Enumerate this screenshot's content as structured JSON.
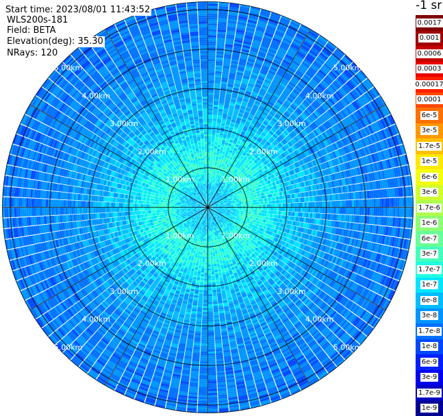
{
  "header": {
    "start_time": "Start time: 2023/08/01 11:43:52",
    "instrument": "WLS200s-181",
    "field": "Field: BETA",
    "elevation": "Elevation(deg): 35.30",
    "nrays": "NRays: 120"
  },
  "colorbar": {
    "unit_label": "-1 sr",
    "levels": [
      {
        "label": "0.0017",
        "color": "#800000"
      },
      {
        "label": "0.001",
        "color": "#a00000"
      },
      {
        "label": "0.0006",
        "color": "#c40000"
      },
      {
        "label": "0.0003",
        "color": "#e80000"
      },
      {
        "label": "0.00017",
        "color": "#ff2000"
      },
      {
        "label": "0.0001",
        "color": "#ff4800"
      },
      {
        "label": "6e-5",
        "color": "#ff7000"
      },
      {
        "label": "3e-5",
        "color": "#ff9800"
      },
      {
        "label": "1.7e-5",
        "color": "#ffc000"
      },
      {
        "label": "1e-5",
        "color": "#ffe800"
      },
      {
        "label": "6e-6",
        "color": "#f4ff0c"
      },
      {
        "label": "3e-6",
        "color": "#d0ff30"
      },
      {
        "label": "1.7e-6",
        "color": "#b0ff50"
      },
      {
        "label": "1e-6",
        "color": "#8cff74"
      },
      {
        "label": "6e-7",
        "color": "#68ff98"
      },
      {
        "label": "3e-7",
        "color": "#44ffbc"
      },
      {
        "label": "1.7e-7",
        "color": "#20ffe0"
      },
      {
        "label": "1e-7",
        "color": "#00e4ff"
      },
      {
        "label": "6e-8",
        "color": "#00bcff"
      },
      {
        "label": "3e-8",
        "color": "#0094ff"
      },
      {
        "label": "1.7e-8",
        "color": "#0070ff"
      },
      {
        "label": "1e-8",
        "color": "#0048ff"
      },
      {
        "label": "6e-9",
        "color": "#0020ff"
      },
      {
        "label": "3e-9",
        "color": "#0000f0"
      },
      {
        "label": "1.7e-9",
        "color": "#0000c0"
      },
      {
        "label": "1e-9",
        "color": "#000090"
      }
    ]
  },
  "chart_data": {
    "type": "heatmap",
    "subtype": "ppi-polar",
    "field": "BETA",
    "elevation_deg": 35.3,
    "n_rays": 120,
    "range_rings_km": [
      1,
      2,
      3,
      4,
      5
    ],
    "range_ring_labels": [
      "1.00km",
      "2.00km",
      "3.00km",
      "4.00km",
      "5.00km"
    ],
    "max_range_km": 5.2,
    "azimuth_spokes_deg": [
      0,
      30,
      60,
      90,
      120,
      150,
      180,
      210,
      240,
      270,
      300,
      330
    ],
    "color_scale": "log",
    "value_range": [
      1e-09,
      0.0017
    ],
    "range_profile": [
      {
        "range_km": 0.5,
        "beta": 1e-07
      },
      {
        "range_km": 1.0,
        "beta": 2.5e-07
      },
      {
        "range_km": 1.5,
        "beta": 1.7e-07
      },
      {
        "range_km": 2.0,
        "beta": 1e-07
      },
      {
        "range_km": 3.0,
        "beta": 5e-08
      },
      {
        "range_km": 4.0,
        "beta": 3e-08
      },
      {
        "range_km": 5.0,
        "beta": 2.5e-08
      }
    ],
    "colors": {
      "background": "#ffffff",
      "grid": "#000000",
      "ray_separator": "#ffffff",
      "ring_label": "#ffffff"
    }
  }
}
